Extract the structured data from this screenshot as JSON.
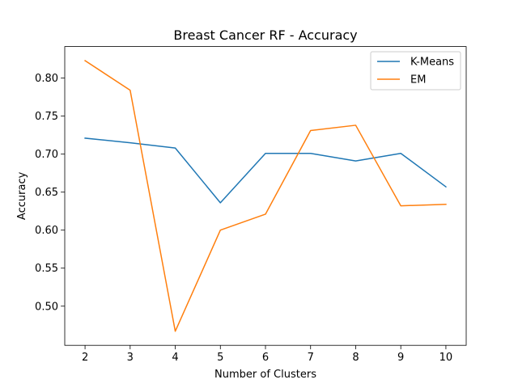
{
  "chart_data": {
    "type": "line",
    "title": "Breast Cancer RF - Accuracy",
    "xlabel": "Number of Clusters",
    "ylabel": "Accuracy",
    "x": [
      2,
      3,
      4,
      5,
      6,
      7,
      8,
      9,
      10
    ],
    "xlim": [
      1.55,
      10.45
    ],
    "ylim": [
      0.4485,
      0.8415
    ],
    "xticks": [
      "2",
      "3",
      "4",
      "5",
      "6",
      "7",
      "8",
      "9",
      "10"
    ],
    "yticks": [
      "0.50",
      "0.55",
      "0.60",
      "0.65",
      "0.70",
      "0.75",
      "0.80"
    ],
    "grid": false,
    "legend_position": "top-right",
    "series": [
      {
        "name": "K-Means",
        "color": "#1f77b4",
        "values": [
          0.721,
          0.715,
          0.708,
          0.636,
          0.701,
          0.701,
          0.691,
          0.701,
          0.657
        ]
      },
      {
        "name": "EM",
        "color": "#ff7f0e",
        "values": [
          0.823,
          0.784,
          0.467,
          0.6,
          0.621,
          0.731,
          0.738,
          0.632,
          0.634
        ]
      }
    ]
  }
}
